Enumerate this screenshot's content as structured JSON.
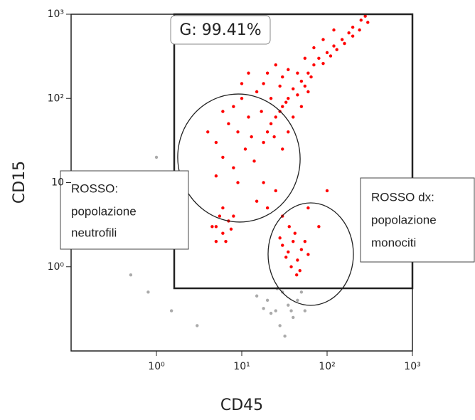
{
  "chart_data": {
    "type": "scatter",
    "log_x": true,
    "log_y": true,
    "x_label": "CD45",
    "y_label": "CD15",
    "xlim": [
      0.1,
      1000
    ],
    "ylim": [
      0.1,
      1000
    ],
    "xticks": [
      {
        "value": 1,
        "label": "10⁰"
      },
      {
        "value": 10,
        "label": "10¹"
      },
      {
        "value": 100,
        "label": "10²"
      },
      {
        "value": 1000,
        "label": "10³"
      }
    ],
    "yticks": [
      {
        "value": 1,
        "label": "10⁰"
      },
      {
        "value": 10,
        "label": "10"
      },
      {
        "value": 100,
        "label": "10²"
      },
      {
        "value": 1000,
        "label": "10³"
      }
    ],
    "gate_label": "G: 99.41%",
    "annotations": [
      {
        "lines": [
          "ROSSO:",
          "popolazione",
          "neutrofili"
        ]
      },
      {
        "lines": [
          "ROSSO dx:",
          "popolazione",
          "monociti"
        ]
      }
    ],
    "series": [
      {
        "color": "#ff0000",
        "x": [
          20,
          25,
          30,
          35,
          40,
          50,
          60,
          70,
          80,
          100,
          120,
          150,
          180,
          200,
          250,
          280,
          18,
          22,
          28,
          33,
          45,
          55,
          65,
          90,
          110,
          130,
          160,
          200,
          240,
          300,
          15,
          18,
          20,
          25,
          30,
          35,
          22,
          28,
          17,
          24,
          30,
          35,
          40,
          50,
          60,
          45,
          55,
          70,
          90,
          120,
          5,
          7,
          8,
          10,
          6,
          9,
          12,
          11,
          4,
          6,
          8,
          13,
          10,
          12,
          5,
          9,
          14,
          5,
          6,
          7,
          5.5,
          6.5,
          4.5,
          7.5,
          6,
          5,
          8,
          35,
          40,
          45,
          30,
          50,
          38,
          42,
          33,
          55,
          48,
          36,
          60,
          28,
          44,
          20,
          25,
          15,
          30,
          18,
          60,
          80,
          100
        ],
        "y": [
          40,
          60,
          80,
          100,
          130,
          160,
          200,
          250,
          300,
          350,
          420,
          500,
          600,
          700,
          850,
          950,
          30,
          50,
          70,
          90,
          110,
          140,
          180,
          260,
          320,
          380,
          450,
          550,
          650,
          800,
          120,
          150,
          200,
          250,
          180,
          220,
          100,
          140,
          70,
          35,
          25,
          40,
          60,
          80,
          120,
          200,
          300,
          400,
          500,
          650,
          30,
          50,
          80,
          100,
          20,
          40,
          60,
          25,
          40,
          70,
          15,
          35,
          150,
          200,
          12,
          10,
          18,
          3,
          2.5,
          3.5,
          4,
          2,
          3,
          2.8,
          5,
          2,
          4,
          1.5,
          2,
          1.2,
          1.8,
          1.6,
          1,
          2.5,
          1.3,
          2,
          0.9,
          3,
          1.4,
          2.2,
          0.8,
          5,
          8,
          6,
          4,
          10,
          5,
          3,
          8
        ]
      },
      {
        "color": "#aaaaaa",
        "x": [
          20,
          25,
          30,
          35,
          40,
          15,
          45,
          28,
          22,
          50,
          32,
          38,
          18,
          0.8,
          1.5,
          0.5,
          2,
          0.3,
          1,
          3,
          55,
          26
        ],
        "y": [
          0.4,
          0.3,
          0.5,
          0.35,
          0.25,
          0.45,
          0.4,
          0.2,
          0.28,
          0.5,
          0.15,
          0.3,
          0.32,
          0.5,
          0.3,
          0.8,
          8,
          2,
          20,
          0.2,
          0.3,
          0.55
        ]
      }
    ]
  }
}
